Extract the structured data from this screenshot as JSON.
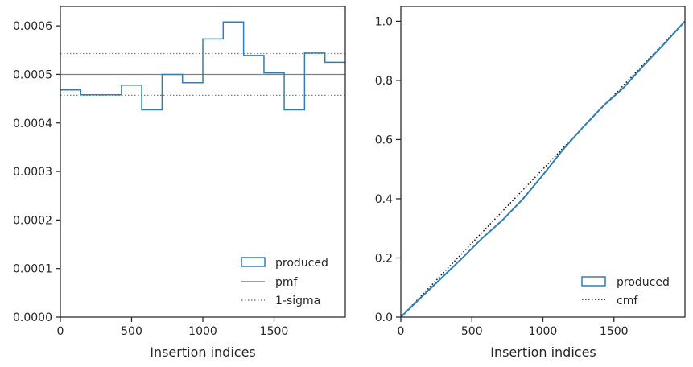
{
  "colors": {
    "produced": "#2f7fb5",
    "pmf": "#808080",
    "sigma": "#808080",
    "cmf": "#111111",
    "axes": "#262626"
  },
  "chart_data": [
    {
      "type": "line",
      "subtype": "step-histogram",
      "xlabel": "Insertion indices",
      "ylabel": "",
      "xlim": [
        0,
        2000
      ],
      "ylim": [
        0,
        0.00064
      ],
      "xticks": [
        0,
        500,
        1000,
        1500
      ],
      "xtick_labels": [
        "0",
        "500",
        "1000",
        "1500"
      ],
      "yticks": [
        0,
        0.0001,
        0.0002,
        0.0003,
        0.0004,
        0.0005,
        0.0006
      ],
      "ytick_labels": [
        "0.0000",
        "0.0001",
        "0.0002",
        "0.0003",
        "0.0004",
        "0.0005",
        "0.0006"
      ],
      "legend_position": "lower-right",
      "series": [
        {
          "name": "produced",
          "style": "step",
          "bin_edges": [
            0,
            143,
            286,
            429,
            571,
            714,
            857,
            1000,
            1143,
            1286,
            1429,
            1571,
            1714,
            1857,
            2000
          ],
          "values": [
            0.000468,
            0.000458,
            0.000458,
            0.000478,
            0.000427,
            0.0005,
            0.000483,
            0.000573,
            0.000608,
            0.000539,
            0.000503,
            0.000427,
            0.000544,
            0.000525
          ]
        },
        {
          "name": "pmf",
          "style": "solid",
          "value": 0.0005
        },
        {
          "name": "1-sigma",
          "style": "dotted",
          "values": [
            0.000457,
            0.000543
          ]
        }
      ]
    },
    {
      "type": "line",
      "xlabel": "Insertion indices",
      "ylabel": "",
      "xlim": [
        0,
        2000
      ],
      "ylim": [
        0,
        1.05
      ],
      "xticks": [
        0,
        500,
        1000,
        1500
      ],
      "xtick_labels": [
        "0",
        "500",
        "1000",
        "1500"
      ],
      "yticks": [
        0,
        0.2,
        0.4,
        0.6,
        0.8,
        1.0
      ],
      "ytick_labels": [
        "0.0",
        "0.2",
        "0.4",
        "0.6",
        "0.8",
        "1.0"
      ],
      "legend_position": "lower-right",
      "series": [
        {
          "name": "produced",
          "style": "solid",
          "x": [
            0,
            143,
            286,
            429,
            571,
            714,
            857,
            1000,
            1143,
            1286,
            1429,
            1571,
            1714,
            1857,
            2000
          ],
          "y": [
            0,
            0.067,
            0.132,
            0.198,
            0.266,
            0.327,
            0.398,
            0.48,
            0.567,
            0.644,
            0.716,
            0.777,
            0.853,
            0.925,
            1.0
          ]
        },
        {
          "name": "cmf",
          "style": "dotted",
          "x": [
            0,
            2000
          ],
          "y": [
            0,
            1.0
          ]
        }
      ]
    }
  ]
}
